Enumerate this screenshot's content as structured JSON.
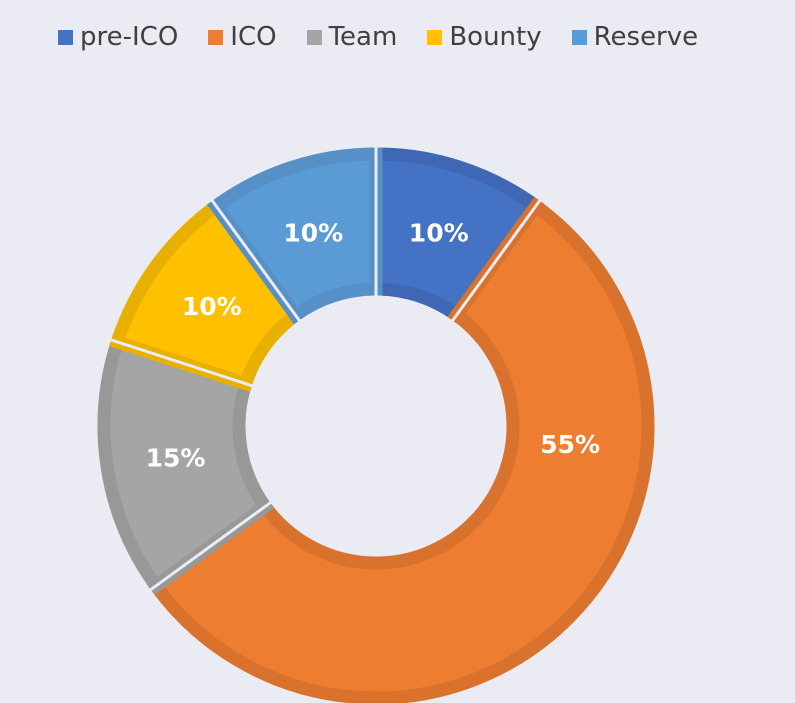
{
  "chart_data": {
    "type": "pie",
    "subtype": "donut",
    "categories": [
      "pre-ICO",
      "ICO",
      "Team",
      "Bounty",
      "Reserve"
    ],
    "values": [
      10,
      55,
      15,
      10,
      10
    ],
    "data_labels": [
      "10%",
      "55%",
      "15%",
      "10%",
      "10%"
    ],
    "colors": [
      "#4472c4",
      "#ed7d31",
      "#a5a5a5",
      "#ffc000",
      "#5b9bd5"
    ],
    "border_colors": [
      "#3f67b3",
      "#d8722c",
      "#989898",
      "#e8b000",
      "#5690c6"
    ],
    "legend_position": "top-left",
    "start_angle_deg": 0,
    "direction": "clockwise"
  }
}
